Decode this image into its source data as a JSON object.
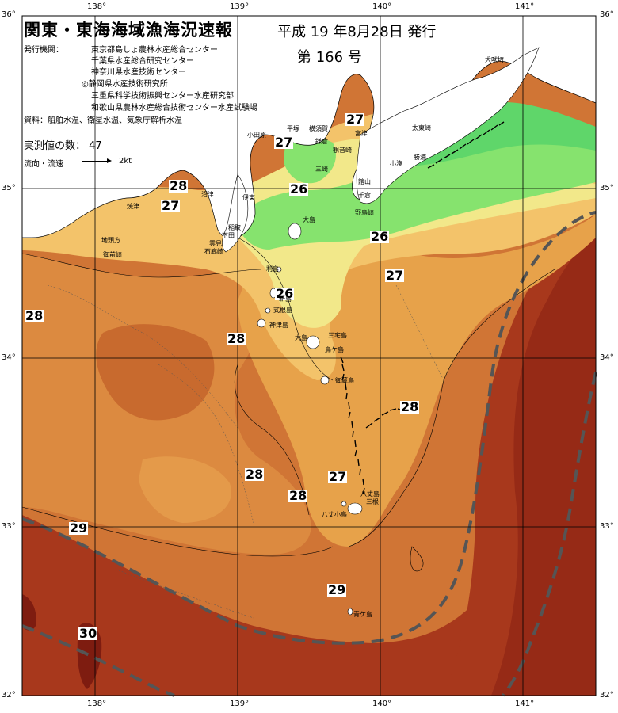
{
  "header": {
    "title": "関東・東海海域漁海況速報",
    "date": "平成 19 年8月28日 発行",
    "issue": "第 166 号"
  },
  "publishers": {
    "label": "発行機関：",
    "items": [
      "東京都島しょ農林水産総合センター",
      "千葉県水産総合研究センター",
      "神奈川県水産技術センター",
      "◎静岡県水産技術研究所",
      "三重県科学技術振興センター水産研究部",
      "和歌山県農林水産総合技術センター水産試験場"
    ]
  },
  "source": "資料：船舶水温、衛星水温、気象庁解析水温",
  "observations": {
    "label": "実測値の数：",
    "count": "47"
  },
  "flow_legend": {
    "label": "流向・流速",
    "speed": "2kt"
  },
  "axes": {
    "lat_labels": [
      "36°",
      "35°",
      "34°",
      "33°",
      "32°"
    ],
    "lon_labels": [
      "138°",
      "139°",
      "140°",
      "141°"
    ]
  },
  "temperature_labels": [
    "27",
    "27",
    "28",
    "27",
    "26",
    "26",
    "27",
    "28",
    "26",
    "28",
    "28",
    "27",
    "28",
    "28",
    "29",
    "29",
    "30"
  ],
  "places": [
    "犬吠埼",
    "太東崎",
    "勝浦",
    "小湊",
    "館山",
    "千倉",
    "野島崎",
    "富津",
    "観音崎",
    "三崎",
    "平塚",
    "横須賀",
    "鎌倉",
    "小田原",
    "伊東",
    "大島",
    "稲取",
    "下田",
    "石廊崎",
    "雲見",
    "沼津",
    "焼津",
    "地頭方",
    "御前崎",
    "利島",
    "新島",
    "式根島",
    "神津島",
    "三宅島",
    "御蔵島",
    "八丈島",
    "青ケ島",
    "大島",
    "八丈小島"
  ],
  "place_labels_extra": [
    "御蔵島",
    "八丈島",
    "青ケ島",
    "三根",
    "鳥ケ島"
  ],
  "colors": {
    "land": "#ffffff",
    "t_cold": "#5fd66a",
    "t_green2": "#86e36e",
    "t_yellow": "#f2e88a",
    "t_tan": "#f3c36a",
    "t_orange1": "#e7a24a",
    "t_orange2": "#d9803a",
    "t_orange3": "#c7622a",
    "t_red": "#a8381c",
    "t_deep": "#8a2414",
    "kuroshio_line": "#555555"
  }
}
